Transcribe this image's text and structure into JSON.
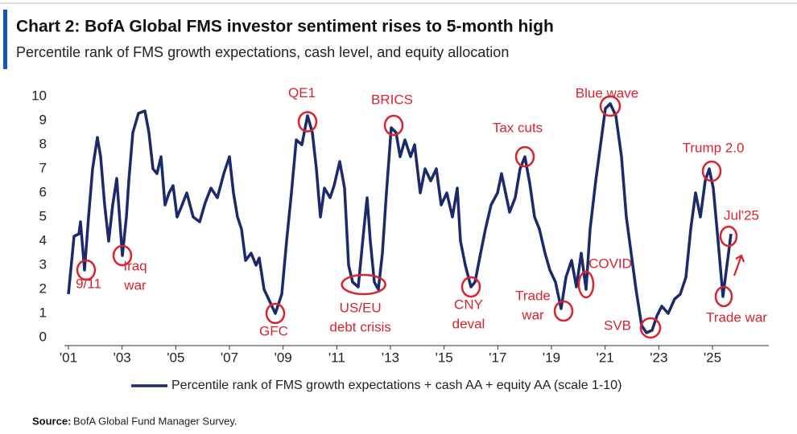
{
  "chart_data": {
    "type": "line",
    "title": "Chart 2: BofA Global FMS investor sentiment rises to 5-month high",
    "subtitle": "Percentile rank of FMS growth expectations, cash level, and equity allocation",
    "source": {
      "label": "Source:",
      "text": "BofA Global Fund Manager Survey."
    },
    "xlim": [
      2000.85,
      2027.1
    ],
    "ylim": [
      0,
      10
    ],
    "yticks": [
      0,
      1,
      2,
      3,
      4,
      5,
      6,
      7,
      8,
      9,
      10
    ],
    "xticks": [
      {
        "value": 2001,
        "label": "'01"
      },
      {
        "value": 2003,
        "label": "'03"
      },
      {
        "value": 2005,
        "label": "'05"
      },
      {
        "value": 2007,
        "label": "'07"
      },
      {
        "value": 2009,
        "label": "'09"
      },
      {
        "value": 2011,
        "label": "'11"
      },
      {
        "value": 2013,
        "label": "'13"
      },
      {
        "value": 2015,
        "label": "'15"
      },
      {
        "value": 2017,
        "label": "'17"
      },
      {
        "value": 2019,
        "label": "'19"
      },
      {
        "value": 2021,
        "label": "'21"
      },
      {
        "value": 2023,
        "label": "'23"
      },
      {
        "value": 2025,
        "label": "'25"
      }
    ],
    "grid": false,
    "x": [
      2001.0,
      2001.21,
      2001.39,
      2001.45,
      2001.6,
      2001.75,
      2001.9,
      2002.08,
      2002.2,
      2002.35,
      2002.5,
      2002.65,
      2002.8,
      2003.01,
      2003.16,
      2003.25,
      2003.4,
      2003.61,
      2003.85,
      2004.0,
      2004.15,
      2004.3,
      2004.45,
      2004.6,
      2004.75,
      2004.9,
      2005.05,
      2005.2,
      2005.41,
      2005.65,
      2005.89,
      2006.1,
      2006.31,
      2006.55,
      2006.79,
      2007.0,
      2007.15,
      2007.3,
      2007.45,
      2007.6,
      2007.81,
      2007.99,
      2008.11,
      2008.29,
      2008.5,
      2008.71,
      2008.95,
      2009.13,
      2009.31,
      2009.49,
      2009.7,
      2009.91,
      2010.09,
      2010.24,
      2010.39,
      2010.54,
      2010.75,
      2010.9,
      2011.11,
      2011.29,
      2011.44,
      2011.59,
      2011.8,
      2012.01,
      2012.13,
      2012.25,
      2012.4,
      2012.55,
      2012.7,
      2012.85,
      2013.03,
      2013.21,
      2013.36,
      2013.54,
      2013.75,
      2013.9,
      2014.11,
      2014.29,
      2014.5,
      2014.71,
      2014.89,
      2015.1,
      2015.31,
      2015.49,
      2015.61,
      2015.79,
      2016.0,
      2016.15,
      2016.36,
      2016.54,
      2016.75,
      2016.99,
      2017.14,
      2017.29,
      2017.44,
      2017.65,
      2017.83,
      2018.01,
      2018.19,
      2018.37,
      2018.55,
      2018.76,
      2018.94,
      2019.15,
      2019.36,
      2019.54,
      2019.75,
      2019.93,
      2020.11,
      2020.29,
      2020.44,
      2020.65,
      2020.83,
      2021.01,
      2021.19,
      2021.4,
      2021.61,
      2021.79,
      2021.97,
      2022.15,
      2022.36,
      2022.54,
      2022.75,
      2022.93,
      2023.11,
      2023.35,
      2023.59,
      2023.8,
      2024.01,
      2024.19,
      2024.37,
      2024.55,
      2024.73,
      2024.88,
      2025.03,
      2025.21,
      2025.39,
      2025.54,
      2025.69
    ],
    "series": [
      {
        "name": "Percentile rank of FMS growth expectations + cash AA + equity AA (scale 1-10)",
        "color": "#1b2a6b",
        "values": [
          1.8,
          4.2,
          4.3,
          4.8,
          2.8,
          5.0,
          7.0,
          8.3,
          7.5,
          5.5,
          4.0,
          5.5,
          6.6,
          3.4,
          5.0,
          6.5,
          8.5,
          9.3,
          9.4,
          8.5,
          7.0,
          6.8,
          7.5,
          5.5,
          6.0,
          6.3,
          5.0,
          5.4,
          6.0,
          5.0,
          4.8,
          5.6,
          6.2,
          5.8,
          6.8,
          7.5,
          6.0,
          5.0,
          4.5,
          3.2,
          3.5,
          3.0,
          3.3,
          2.0,
          1.5,
          1.0,
          1.8,
          4.0,
          6.0,
          8.2,
          8.0,
          9.2,
          8.5,
          7.0,
          5.0,
          6.2,
          5.8,
          6.3,
          7.3,
          6.2,
          3.0,
          2.3,
          2.1,
          4.5,
          5.8,
          4.0,
          2.3,
          2.0,
          3.5,
          6.0,
          8.7,
          8.5,
          7.5,
          8.2,
          7.5,
          8.0,
          6.0,
          7.0,
          6.5,
          7.0,
          5.5,
          6.0,
          5.0,
          6.2,
          4.0,
          3.0,
          2.1,
          2.3,
          3.5,
          4.5,
          5.5,
          6.0,
          6.8,
          6.0,
          5.2,
          5.8,
          7.0,
          7.5,
          6.4,
          5.0,
          4.5,
          3.5,
          2.8,
          2.3,
          1.2,
          2.5,
          3.2,
          2.1,
          3.5,
          2.0,
          4.5,
          6.5,
          8.0,
          9.5,
          9.7,
          9.2,
          7.5,
          5.0,
          3.5,
          2.0,
          0.5,
          0.2,
          0.3,
          0.9,
          1.3,
          1.0,
          1.6,
          1.8,
          2.5,
          4.5,
          6.0,
          5.0,
          6.5,
          7.0,
          6.2,
          4.0,
          1.7,
          3.0,
          4.3
        ]
      }
    ],
    "annotations": [
      {
        "lines": [
          "9/11"
        ],
        "x": 2001.66,
        "y": 2.8
      },
      {
        "lines": [
          "Iraq",
          "war"
        ],
        "x": 2003.01,
        "y": 3.4
      },
      {
        "lines": [
          "GFC"
        ],
        "x": 2008.71,
        "y": 1.0
      },
      {
        "lines": [
          "QE1"
        ],
        "x": 2009.91,
        "y": 8.95
      },
      {
        "lines": [
          "US/EU",
          "debt crisis"
        ],
        "x": 2012.0,
        "y": 2.2
      },
      {
        "lines": [
          "BRICS"
        ],
        "x": 2013.12,
        "y": 8.8
      },
      {
        "lines": [
          "CNY",
          "deval"
        ],
        "x": 2016.0,
        "y": 2.1
      },
      {
        "lines": [
          "Tax cuts"
        ],
        "x": 2018.01,
        "y": 7.5
      },
      {
        "lines": [
          "Trade",
          "war"
        ],
        "x": 2019.45,
        "y": 1.1
      },
      {
        "lines": [
          "COVID"
        ],
        "x": 2020.29,
        "y": 2.2
      },
      {
        "lines": [
          "Blue wave"
        ],
        "x": 2021.19,
        "y": 9.6
      },
      {
        "lines": [
          "SVB"
        ],
        "x": 2022.69,
        "y": 0.4
      },
      {
        "lines": [
          "Trump 2.0"
        ],
        "x": 2024.97,
        "y": 6.9
      },
      {
        "lines": [
          "Jul'25"
        ],
        "x": 2025.6,
        "y": 4.2
      },
      {
        "lines": [
          "Trade war"
        ],
        "x": 2025.42,
        "y": 1.7
      }
    ]
  }
}
